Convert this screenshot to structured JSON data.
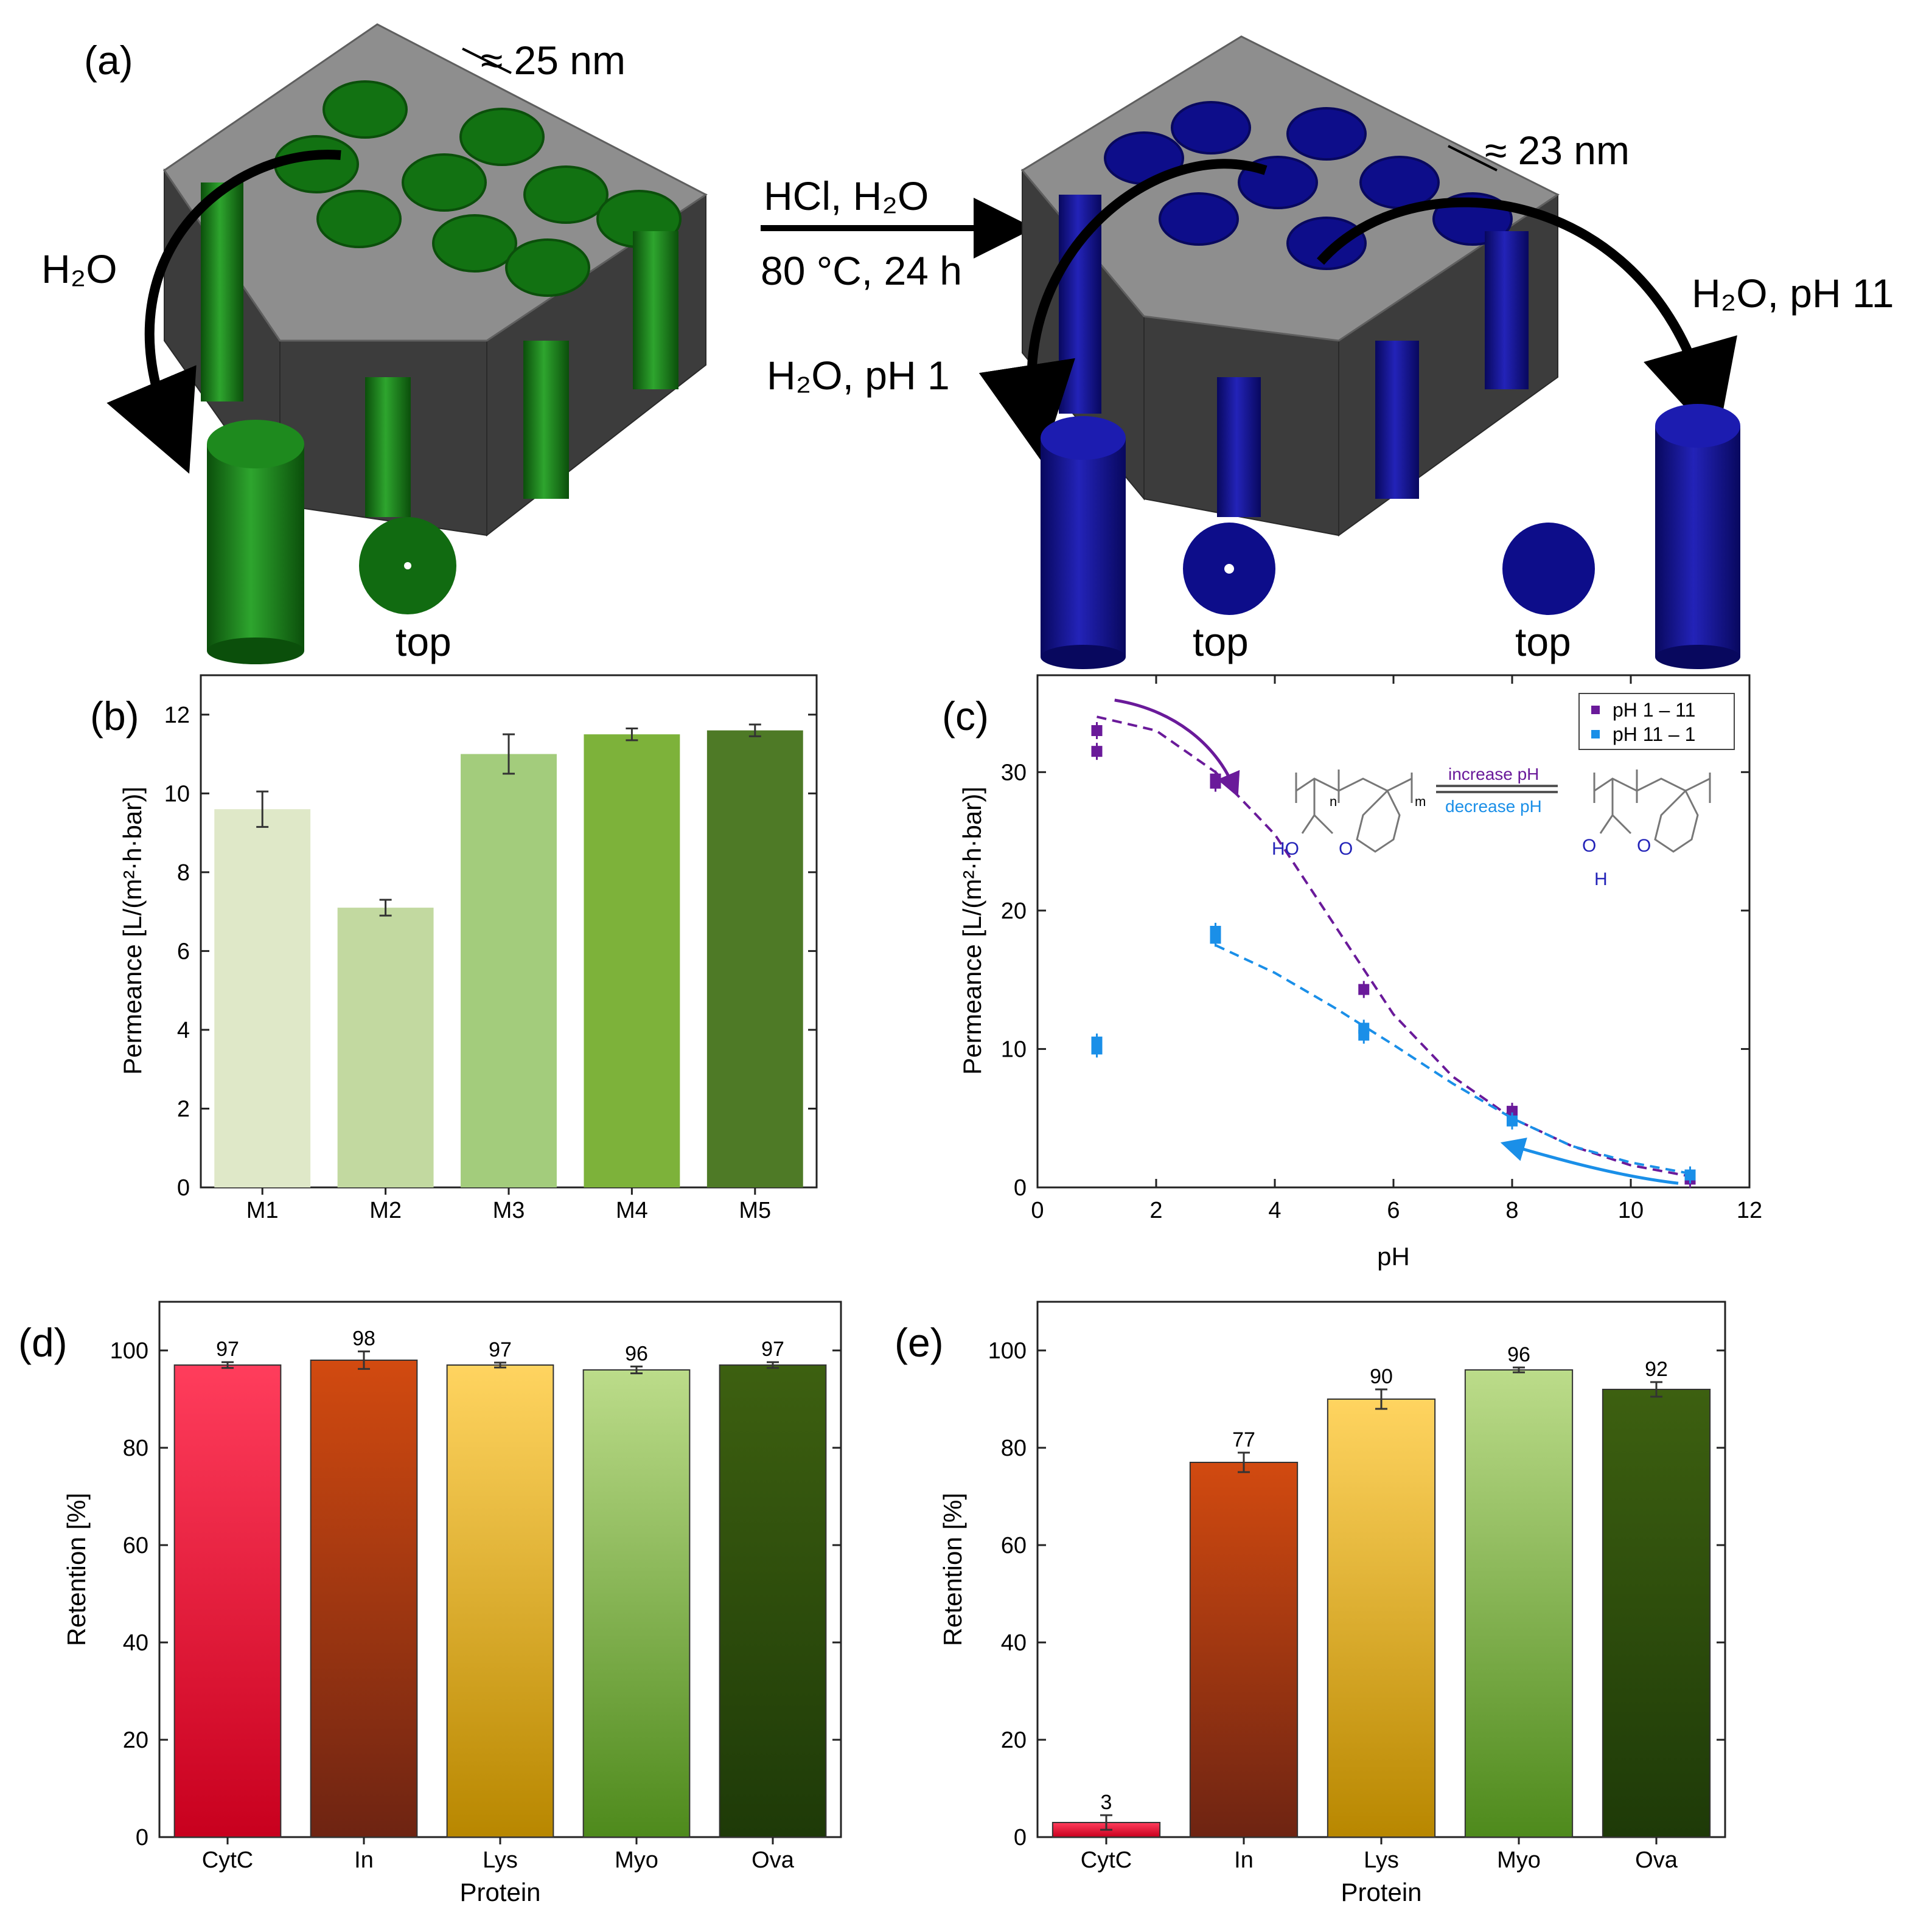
{
  "colors": {
    "green_pore": "#1f8a1f",
    "green_dark": "#0d5c0d",
    "blue_pore": "#1a1aa0",
    "blue_dark": "#0a0a6e",
    "matrix_top": "#8e8e8e",
    "matrix_side": "#3c3c3c",
    "purple": "#6a1a9a",
    "cyan": "#1a8fe8"
  },
  "panel_a": {
    "label": "(a)",
    "pore_left": "≈ 25 nm",
    "pore_right": "≈ 23 nm",
    "water_left": "H₂O",
    "reaction_top": "HCl, H₂O",
    "reaction_bottom": "80 °C, 24 h",
    "cond_ph1": "H₂O, pH 1",
    "cond_ph11": "H₂O, pH 11",
    "top_label": "top"
  },
  "chart_data": [
    {
      "id": "b",
      "type": "bar",
      "panel_label": "(b)",
      "categories": [
        "M1",
        "M2",
        "M3",
        "M4",
        "M5"
      ],
      "values": [
        9.6,
        7.1,
        11.0,
        11.5,
        11.6
      ],
      "errors": [
        0.45,
        0.2,
        0.5,
        0.15,
        0.15
      ],
      "colors": [
        "#dfe8c8",
        "#c2d9a0",
        "#a3cc7c",
        "#7db23a",
        "#4e7a26"
      ],
      "ylabel": "Permeance [L/(m²·h·bar)]",
      "xlabel": "",
      "ylim": [
        0,
        13
      ],
      "yticks": [
        "0",
        "2",
        "4",
        "6",
        "8",
        "10",
        "12"
      ]
    },
    {
      "id": "c",
      "type": "scatter",
      "panel_label": "(c)",
      "xlabel": "pH",
      "ylabel": "Permeance [L/(m²·h·bar)]",
      "xlim": [
        0,
        12
      ],
      "ylim": [
        0,
        37
      ],
      "xticks": [
        "0",
        "2",
        "4",
        "6",
        "8",
        "10",
        "12"
      ],
      "yticks": [
        "0",
        "10",
        "20",
        "30"
      ],
      "series": [
        {
          "name": "pH 1 – 11",
          "color": "#6a1a9a",
          "x": [
            1,
            1,
            3,
            3,
            5.5,
            8,
            11
          ],
          "y": [
            33,
            31.5,
            29.5,
            29.2,
            14.3,
            5.5,
            0.6
          ],
          "fit_x": [
            1,
            2,
            3,
            4,
            5,
            6,
            7,
            8,
            9,
            10,
            11
          ],
          "fit_y": [
            34,
            33,
            30,
            25.5,
            19,
            12.5,
            8,
            5,
            3,
            1.6,
            0.8
          ]
        },
        {
          "name": "pH 11 – 1",
          "color": "#1a8fe8",
          "x": [
            1,
            1,
            3,
            3,
            5.5,
            5.5,
            8,
            11
          ],
          "y": [
            10.5,
            10,
            18.5,
            18,
            11.5,
            11,
            4.8,
            0.9
          ],
          "fit_x": [
            3,
            4,
            5,
            6,
            7,
            8,
            9,
            10,
            11
          ],
          "fit_y": [
            17.5,
            15.5,
            13,
            10.3,
            7.5,
            5,
            3,
            1.8,
            1.0
          ]
        }
      ],
      "scheme": {
        "increase": "increase pH",
        "decrease": "decrease pH",
        "acid": "HO",
        "oxygen": "O",
        "proton": "H",
        "n": "n",
        "m": "m"
      }
    },
    {
      "id": "d",
      "type": "bar",
      "panel_label": "(d)",
      "categories": [
        "CytC",
        "In",
        "Lys",
        "Myo",
        "Ova"
      ],
      "values": [
        97,
        98,
        97,
        96,
        97
      ],
      "value_labels": [
        "97",
        "98",
        "97",
        "96",
        "97"
      ],
      "errors": [
        0.6,
        1.8,
        0.5,
        0.7,
        0.6
      ],
      "gradients": [
        [
          "#ff3d5c",
          "#c8001e"
        ],
        [
          "#d24a10",
          "#6e2412"
        ],
        [
          "#ffd460",
          "#b88700"
        ],
        [
          "#bcdc8a",
          "#4e8a1c"
        ],
        [
          "#3d6010",
          "#1e3a08"
        ]
      ],
      "xlabel": "Protein",
      "ylabel": "Retention [%]",
      "ylim": [
        0,
        110
      ],
      "yticks": [
        "0",
        "20",
        "40",
        "60",
        "80",
        "100"
      ]
    },
    {
      "id": "e",
      "type": "bar",
      "panel_label": "(e)",
      "categories": [
        "CytC",
        "In",
        "Lys",
        "Myo",
        "Ova"
      ],
      "values": [
        3,
        77,
        90,
        96,
        92
      ],
      "value_labels": [
        "3",
        "77",
        "90",
        "96",
        "92"
      ],
      "errors": [
        1.5,
        2.0,
        2.0,
        0.5,
        1.5
      ],
      "gradients": [
        [
          "#ff3d5c",
          "#c8001e"
        ],
        [
          "#d24a10",
          "#6e2412"
        ],
        [
          "#ffd460",
          "#b88700"
        ],
        [
          "#bcdc8a",
          "#4e8a1c"
        ],
        [
          "#3d6010",
          "#1e3a08"
        ]
      ],
      "xlabel": "Protein",
      "ylabel": "Retention [%]",
      "ylim": [
        0,
        110
      ],
      "yticks": [
        "0",
        "20",
        "40",
        "60",
        "80",
        "100"
      ]
    }
  ]
}
